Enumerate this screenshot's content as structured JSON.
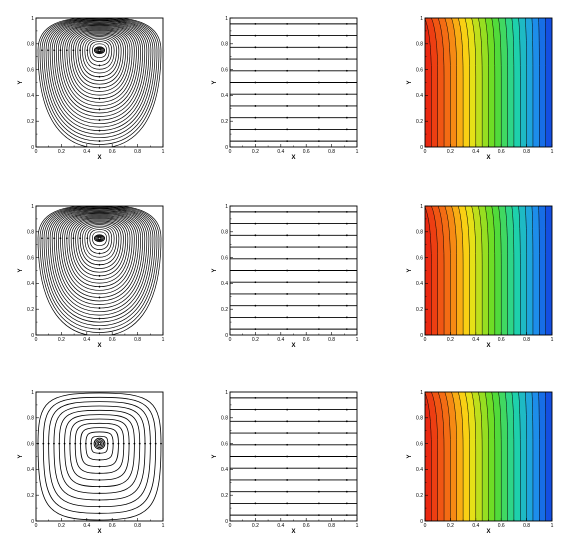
{
  "figure": {
    "rows": 3,
    "cols": 3
  },
  "chart_data": [
    {
      "id": "r1c1",
      "type": "streamlines",
      "pattern": "lid-driven-vortex",
      "vortex_center": [
        0.5,
        0.75
      ],
      "xlabel": "X",
      "ylabel": "Y",
      "xlim": [
        0,
        1
      ],
      "ylim": [
        0,
        1
      ],
      "xticks": [
        "0",
        "0.2",
        "0.4",
        "0.6",
        "0.8",
        "1"
      ],
      "yticks": [
        "0",
        "0.2",
        "0.4",
        "0.6",
        "0.8",
        "1"
      ]
    },
    {
      "id": "r1c2",
      "type": "streamlines",
      "pattern": "horizontal",
      "line_count": 11,
      "xlabel": "X",
      "ylabel": "Y",
      "xlim": [
        0,
        1
      ],
      "ylim": [
        0,
        1
      ],
      "xticks": [
        "0",
        "0.2",
        "0.4",
        "0.6",
        "0.8",
        "1"
      ],
      "yticks": [
        "0",
        "0.2",
        "0.4",
        "0.6",
        "0.8",
        "1"
      ]
    },
    {
      "id": "r1c3",
      "type": "contour",
      "pattern": "vertical-bands",
      "colormap": "red-to-blue",
      "levels": 20,
      "xlabel": "X",
      "ylabel": "Y",
      "xlim": [
        0,
        1
      ],
      "ylim": [
        0,
        1
      ],
      "xticks": [
        "0",
        "0.2",
        "0.4",
        "0.6",
        "0.8",
        "1"
      ],
      "yticks": [
        "0",
        "0.2",
        "0.4",
        "0.6",
        "0.8",
        "1"
      ]
    },
    {
      "id": "r2c1",
      "type": "streamlines",
      "pattern": "lid-driven-vortex",
      "vortex_center": [
        0.5,
        0.75
      ],
      "xlabel": "X",
      "ylabel": "Y",
      "xlim": [
        0,
        1
      ],
      "ylim": [
        0,
        1
      ],
      "xticks": [
        "0",
        "0.2",
        "0.4",
        "0.6",
        "0.8",
        "1"
      ],
      "yticks": [
        "0",
        "0.2",
        "0.4",
        "0.6",
        "0.8",
        "1"
      ]
    },
    {
      "id": "r2c2",
      "type": "streamlines",
      "pattern": "horizontal",
      "line_count": 11,
      "xlabel": "X",
      "ylabel": "Y",
      "xlim": [
        0,
        1
      ],
      "ylim": [
        0,
        1
      ],
      "xticks": [
        "0",
        "0.2",
        "0.4",
        "0.6",
        "0.8",
        "1"
      ],
      "yticks": [
        "0",
        "0.2",
        "0.4",
        "0.6",
        "0.8",
        "1"
      ]
    },
    {
      "id": "r2c3",
      "type": "contour",
      "pattern": "vertical-bands",
      "colormap": "red-to-blue",
      "levels": 20,
      "xlabel": "X",
      "ylabel": "Y",
      "xlim": [
        0,
        1
      ],
      "ylim": [
        0,
        1
      ],
      "xticks": [
        "0",
        "0.2",
        "0.4",
        "0.6",
        "0.8",
        "1"
      ],
      "yticks": [
        "0",
        "0.2",
        "0.4",
        "0.6",
        "0.8",
        "1"
      ]
    },
    {
      "id": "r3c1",
      "type": "streamlines",
      "pattern": "spiral-vortex",
      "vortex_center": [
        0.5,
        0.6
      ],
      "xlabel": "X",
      "ylabel": "Y",
      "xlim": [
        0,
        1
      ],
      "ylim": [
        0,
        1
      ],
      "xticks": [
        "0",
        "0.2",
        "0.4",
        "0.6",
        "0.8",
        "1"
      ],
      "yticks": [
        "0",
        "0.2",
        "0.4",
        "0.6",
        "0.8",
        "1"
      ]
    },
    {
      "id": "r3c2",
      "type": "streamlines",
      "pattern": "horizontal",
      "line_count": 11,
      "xlabel": "X",
      "ylabel": "Y",
      "xlim": [
        0,
        1
      ],
      "ylim": [
        0,
        1
      ],
      "xticks": [
        "0",
        "0.2",
        "0.4",
        "0.6",
        "0.8",
        "1"
      ],
      "yticks": [
        "0",
        "0.2",
        "0.4",
        "0.6",
        "0.8",
        "1"
      ]
    },
    {
      "id": "r3c3",
      "type": "contour",
      "pattern": "vertical-bands",
      "colormap": "red-to-blue",
      "levels": 20,
      "xlabel": "X",
      "ylabel": "Y",
      "xlim": [
        0,
        1
      ],
      "ylim": [
        0,
        1
      ],
      "xticks": [
        "0",
        "0.2",
        "0.4",
        "0.6",
        "0.8",
        "1"
      ],
      "yticks": [
        "0",
        "0.2",
        "0.4",
        "0.6",
        "0.8",
        "1"
      ]
    }
  ],
  "colors": {
    "axis": "#000000",
    "stream": "#000000",
    "contour_line": "#000000",
    "low": "#e81c10",
    "high": "#1040e0"
  }
}
